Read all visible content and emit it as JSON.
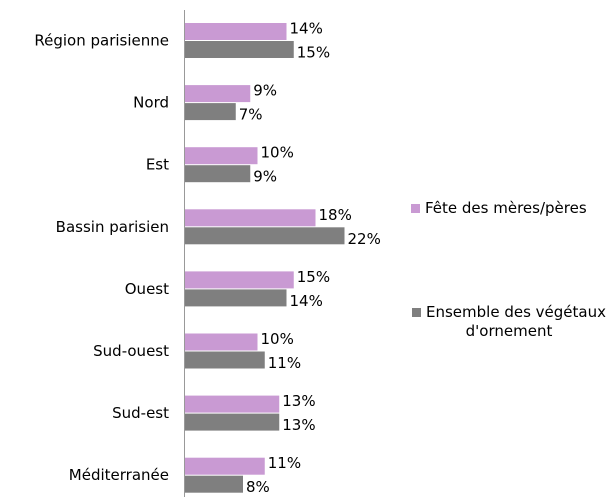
{
  "chart_data": {
    "type": "bar",
    "orientation": "horizontal",
    "categories": [
      "Région parisienne",
      "Nord",
      "Est",
      "Bassin parisien",
      "Ouest",
      "Sud-ouest",
      "Sud-est",
      "Méditerranée"
    ],
    "series": [
      {
        "name": "Fête des mères/pères",
        "color": "#c99ad3",
        "values": [
          14,
          9,
          10,
          18,
          15,
          10,
          13,
          11
        ],
        "value_labels": [
          "14%",
          "9%",
          "10%",
          "18%",
          "15%",
          "10%",
          "13%",
          "11%"
        ]
      },
      {
        "name": "Ensemble des végétaux d'ornement",
        "color": "#7f7f7f",
        "values": [
          15,
          7,
          9,
          22,
          14,
          11,
          13,
          8
        ],
        "value_labels": [
          "15%",
          "7%",
          "9%",
          "22%",
          "14%",
          "11%",
          "13%",
          "8%"
        ]
      }
    ],
    "legend": "right"
  }
}
